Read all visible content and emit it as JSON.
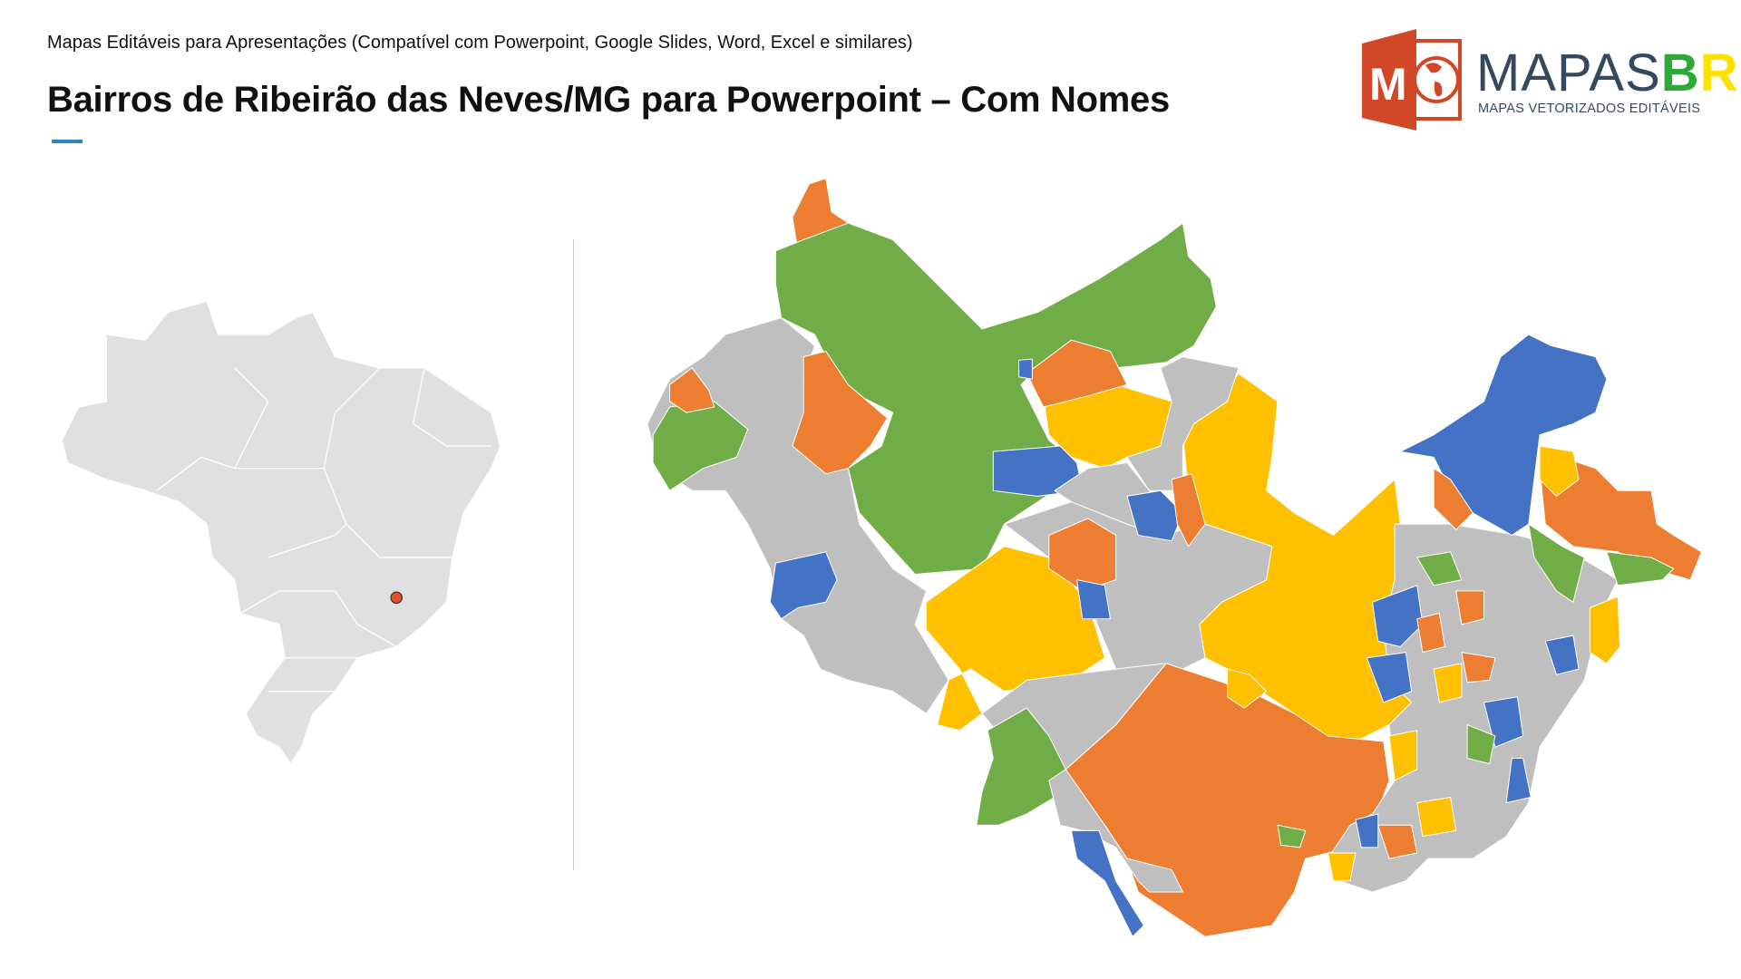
{
  "header": {
    "subtitle": "Mapas Editáveis para Apresentações (Compatível com Powerpoint, Google Slides, Word, Excel e similares)",
    "title": "Bairros de Ribeirão das Neves/MG para Powerpoint – Com Nomes",
    "accent_color": "#2e86c1"
  },
  "logo": {
    "word_main": "MAPAS",
    "word_b": "B",
    "word_r": "R",
    "tagline": "MAPAS VETORIZADOS EDITÁVEIS",
    "icon_letter": "M",
    "colors": {
      "icon": "#d24726",
      "text": "#34495e",
      "b": "#2ea836",
      "r": "#ffe000"
    }
  },
  "locator_map": {
    "country": "Brasil",
    "marker": "Ribeirão das Neves/MG",
    "fill": "#e0e0e0",
    "marker_color": "#e0502a"
  },
  "neighborhood_map": {
    "palette": {
      "green": "#70ad47",
      "orange": "#ed7d31",
      "yellow": "#ffc000",
      "blue": "#4472c4",
      "grey": "#bfbfbf"
    }
  }
}
